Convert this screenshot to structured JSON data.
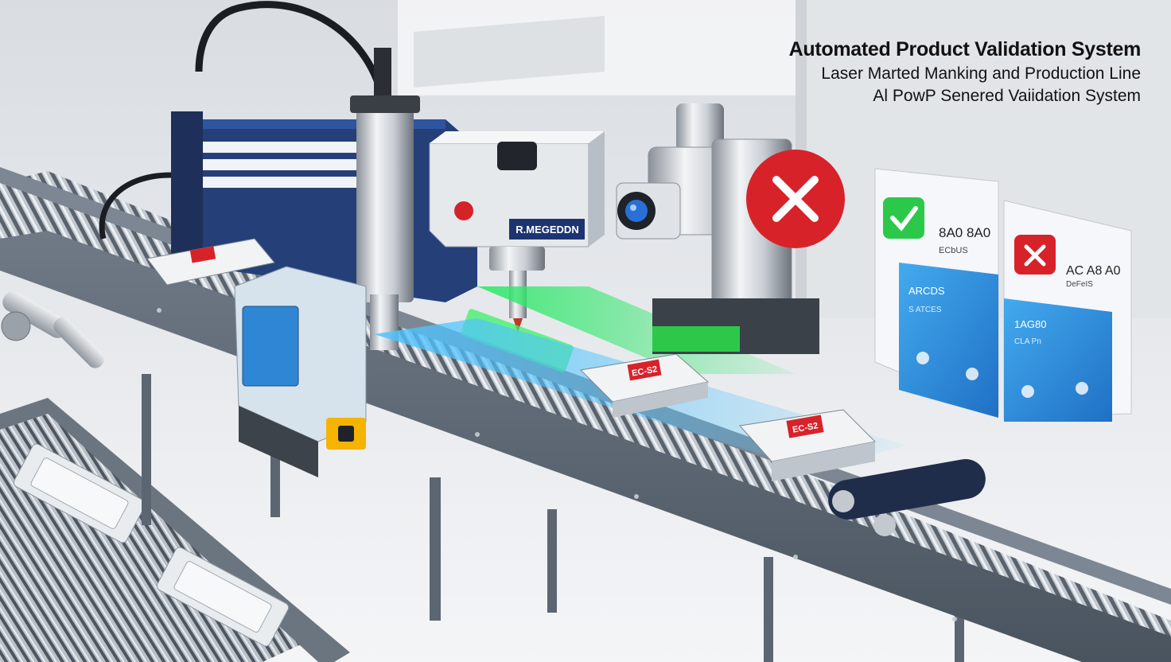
{
  "header": {
    "title": "Automated Product Validation System",
    "subtitle_1": "Laser Marted Manking and Production Line",
    "subtitle_2": "Al PowP Senered Vaiidation System"
  },
  "machine": {
    "laser_label": "R.MEGEDDN"
  },
  "screens": {
    "pass_panel": {
      "code": "8A0 8A0",
      "line": "ECbUS",
      "overlay_title": "ARCDS",
      "overlay_sub": "S ATCES"
    },
    "fail_panel": {
      "code": "AC A8 A0",
      "line": "DeFeIS",
      "overlay_title": "1AG80",
      "overlay_sub": "CLA Pn"
    }
  },
  "products": {
    "label": "EC-S2"
  },
  "colors": {
    "accent_blue": "#1f8ad6",
    "pass_green": "#2cc84a",
    "fail_red": "#d8222a",
    "laser_green": "#3cf06a"
  }
}
